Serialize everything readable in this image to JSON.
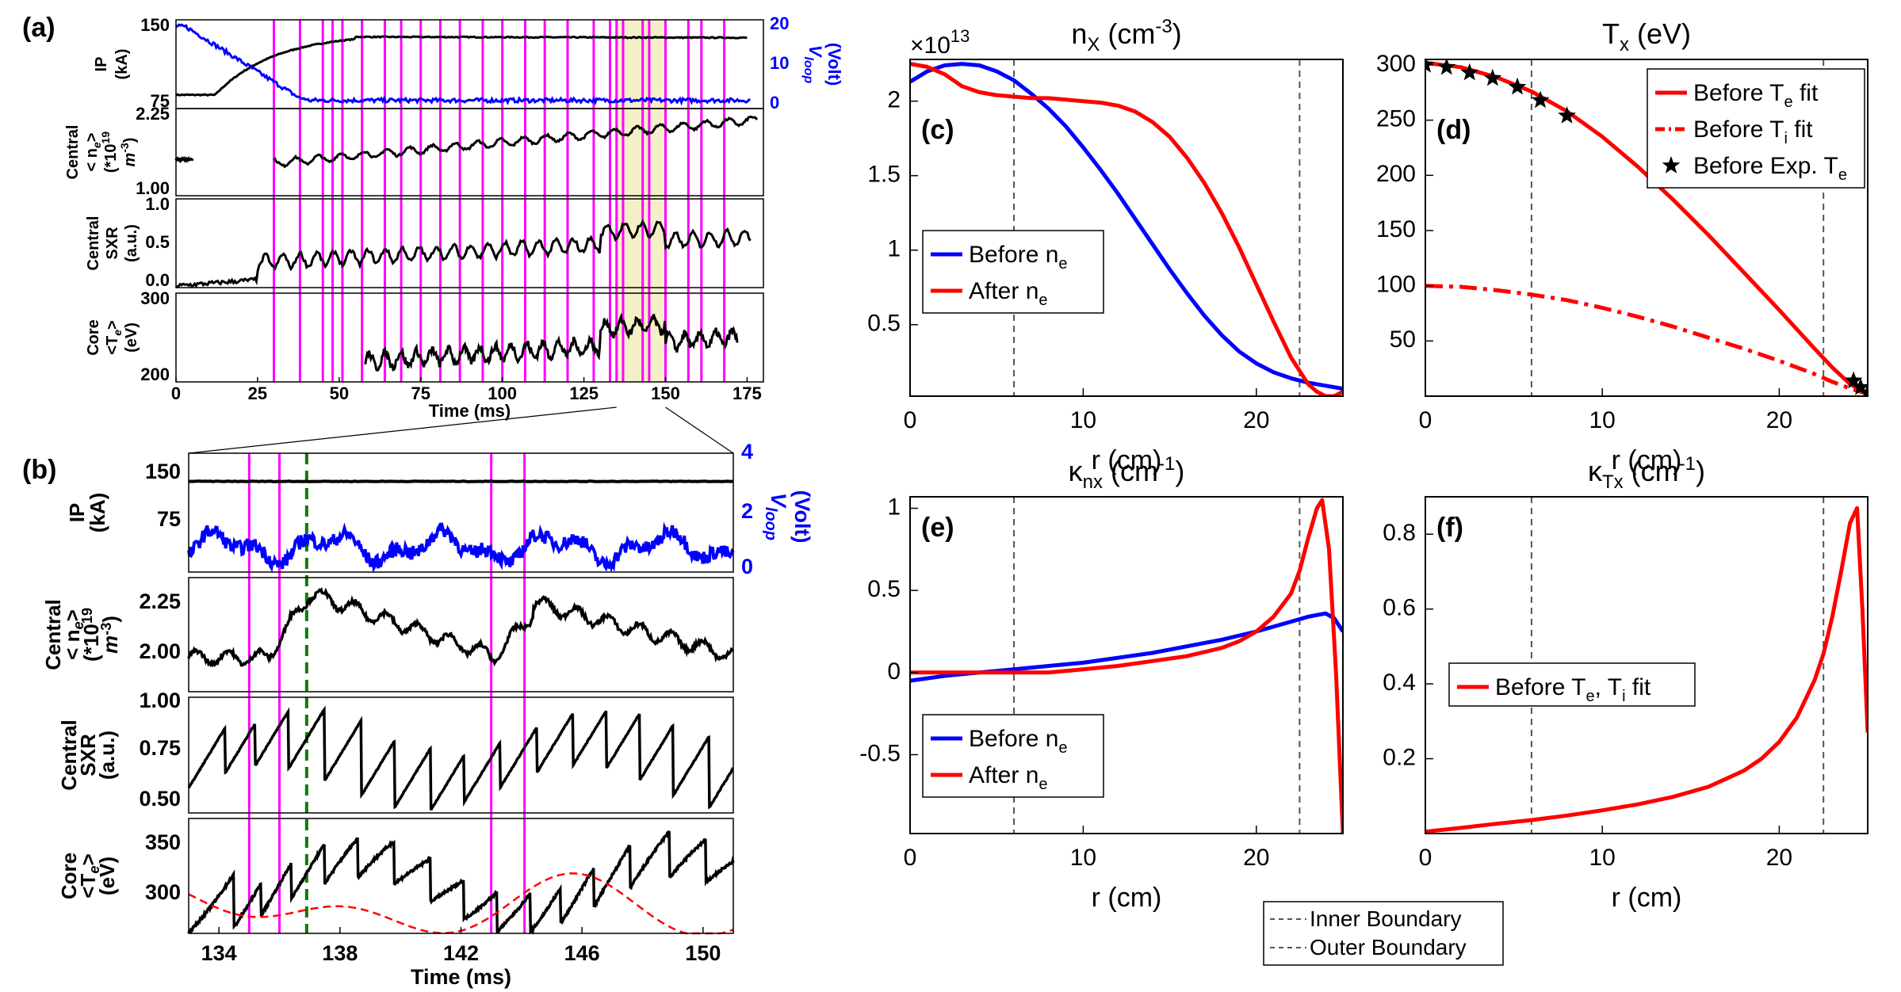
{
  "colors": {
    "black": "#000000",
    "blue": "#0000ff",
    "red": "#ff0000",
    "magenta": "#ff00ff",
    "green": "#008000",
    "highlight": "#f3f0c8",
    "grey": "#555555"
  },
  "panel_a": {
    "label": "(a)",
    "xlabel": "Time (ms)",
    "xticks": [
      "0",
      "25",
      "50",
      "75",
      "100",
      "125",
      "150",
      "175"
    ],
    "xlim": [
      0,
      180
    ],
    "highlight": [
      135,
      150
    ],
    "sawtooth_times": [
      30,
      38,
      45,
      48,
      51,
      57,
      64,
      69,
      75,
      81,
      87,
      94,
      100,
      107,
      113,
      120,
      128,
      133,
      135,
      137,
      143,
      145,
      150,
      157,
      161,
      168
    ],
    "subplots": [
      {
        "ylabel": [
          "IP",
          "(kA)"
        ],
        "yticks": [
          "150",
          "75"
        ],
        "y2label": [
          "V",
          "loop",
          "(Volt)"
        ],
        "y2ticks": [
          "20",
          "10",
          "0"
        ]
      },
      {
        "ylabel": [
          "Central",
          "< n",
          "e",
          ">",
          "(*10",
          "19",
          "m",
          "-3",
          ")"
        ],
        "yticks": [
          "2.25",
          "1.00"
        ]
      },
      {
        "ylabel": [
          "Central",
          "SXR",
          "(a.u.)"
        ],
        "yticks": [
          "1.0",
          "0.5",
          "0.0"
        ]
      },
      {
        "ylabel": [
          "Core",
          "<T",
          "e",
          ">",
          "(eV)"
        ],
        "yticks": [
          "300",
          "200"
        ]
      }
    ]
  },
  "panel_b": {
    "label": "(b)",
    "xlabel": "Time (ms)",
    "xticks": [
      "134",
      "138",
      "142",
      "146",
      "150"
    ],
    "xlim": [
      133,
      151
    ],
    "sawtooth_times": [
      135.0,
      136.0,
      143.0,
      144.1
    ],
    "green_time": 136.9,
    "subplots": [
      {
        "ylabel": [
          "IP",
          "(kA)"
        ],
        "yticks": [
          "150",
          "75"
        ],
        "y2label": [
          "V",
          "loop",
          "(Volt)"
        ],
        "y2ticks": [
          "4",
          "2",
          "0"
        ]
      },
      {
        "ylabel": [
          "Central",
          "< n",
          "e",
          ">",
          "(*10",
          "19",
          "m",
          "-3",
          ")"
        ],
        "yticks": [
          "2.25",
          "2.00"
        ]
      },
      {
        "ylabel": [
          "Central",
          "SXR",
          "(a.u.)"
        ],
        "yticks": [
          "1.00",
          "0.75",
          "0.50"
        ]
      },
      {
        "ylabel": [
          "Core",
          "<T",
          "e",
          ">",
          "(eV)"
        ],
        "yticks": [
          "350",
          "300"
        ]
      }
    ]
  },
  "profiles": {
    "xlabel": "r (cm)",
    "xticks": [
      "0",
      "10",
      "20"
    ],
    "inner_boundary": 6,
    "outer_boundary": 22.5,
    "boundary_legend": [
      "Inner Boundary",
      "Outer Boundary"
    ]
  },
  "chart_data": [
    {
      "id": "c",
      "type": "line",
      "label": "(c)",
      "title": "n",
      "title_sub": "X",
      "title_unit": " (cm",
      "title_sup": "-3",
      "exponent": "×10",
      "exponent_sup": "13",
      "xlim": [
        0,
        25
      ],
      "ylim": [
        0.02,
        2.28
      ],
      "yticks": [
        "2",
        "1.5",
        "1",
        "0.5"
      ],
      "legend": [
        {
          "name": "Before  n",
          "sub": "e",
          "color": "#0000ff"
        },
        {
          "name": "After  n",
          "sub": "e",
          "color": "#ff0000"
        }
      ],
      "series": [
        {
          "name": "Before n_e",
          "color": "#0000ff",
          "x": [
            0,
            1,
            2,
            3,
            4,
            5,
            6,
            7,
            8,
            9,
            10,
            11,
            12,
            13,
            14,
            15,
            16,
            17,
            18,
            19,
            20,
            21,
            22,
            23,
            24,
            25
          ],
          "y": [
            2.13,
            2.2,
            2.24,
            2.25,
            2.24,
            2.2,
            2.14,
            2.05,
            1.95,
            1.83,
            1.69,
            1.54,
            1.38,
            1.21,
            1.04,
            0.87,
            0.71,
            0.56,
            0.43,
            0.32,
            0.24,
            0.18,
            0.14,
            0.11,
            0.09,
            0.07
          ]
        },
        {
          "name": "After n_e",
          "color": "#ff0000",
          "x": [
            0,
            1,
            2,
            3,
            4,
            5,
            6,
            7,
            8,
            9,
            10,
            11,
            12,
            13,
            14,
            15,
            16,
            17,
            18,
            19,
            20,
            21,
            22,
            23,
            23.5,
            24,
            24.5,
            25
          ],
          "y": [
            2.25,
            2.23,
            2.18,
            2.1,
            2.06,
            2.04,
            2.03,
            2.02,
            2.02,
            2.01,
            2.0,
            1.99,
            1.97,
            1.93,
            1.86,
            1.76,
            1.62,
            1.45,
            1.25,
            1.02,
            0.77,
            0.52,
            0.28,
            0.1,
            0.05,
            0.02,
            0.02,
            0.05
          ]
        }
      ]
    },
    {
      "id": "d",
      "type": "line",
      "label": "(d)",
      "title": "T",
      "title_sub": "x",
      "title_unit": " (eV)",
      "xlim": [
        0,
        25
      ],
      "ylim": [
        0,
        305
      ],
      "yticks": [
        "300",
        "250",
        "200",
        "150",
        "100",
        "50"
      ],
      "legend": [
        {
          "name": "Before T",
          "sub": "e",
          "tail": " fit",
          "color": "#ff0000",
          "style": "solid"
        },
        {
          "name": "Before T",
          "sub": "i",
          "tail": " fit",
          "color": "#ff0000",
          "style": "dashdot"
        },
        {
          "name": "Before Exp. T",
          "sub": "e",
          "color": "#000000",
          "style": "star"
        }
      ],
      "series": [
        {
          "name": "Before Te fit",
          "color": "#ff0000",
          "style": "solid",
          "x": [
            0,
            2,
            4,
            6,
            8,
            10,
            12,
            14,
            16,
            18,
            20,
            22,
            23,
            24,
            25
          ],
          "y": [
            302,
            298,
            289,
            276,
            258,
            235,
            208,
            178,
            146,
            112,
            78,
            43,
            26,
            11,
            2
          ]
        },
        {
          "name": "Before Ti fit",
          "color": "#ff0000",
          "style": "dashdot",
          "x": [
            0,
            2,
            4,
            6,
            8,
            10,
            12,
            14,
            16,
            18,
            20,
            22,
            23,
            24,
            25
          ],
          "y": [
            100,
            99,
            96,
            92,
            87,
            80,
            72,
            63,
            53,
            43,
            32,
            20,
            13,
            7,
            2
          ]
        },
        {
          "name": "Before Exp. Te",
          "color": "#000000",
          "style": "star",
          "x": [
            0,
            1.2,
            2.5,
            3.8,
            5.2,
            6.5,
            8,
            24.2,
            24.6,
            25
          ],
          "y": [
            300,
            298,
            293,
            288,
            280,
            268,
            254,
            14,
            8,
            3
          ]
        }
      ]
    },
    {
      "id": "e",
      "type": "line",
      "label": "(e)",
      "title": "κ",
      "title_sub": "nx",
      "title_unit": " (cm",
      "title_sup": "-1",
      "xlim": [
        0,
        25
      ],
      "ylim": [
        -0.98,
        1.07
      ],
      "yticks": [
        "1",
        "0.5",
        "0",
        "-0.5"
      ],
      "legend": [
        {
          "name": "Before  n",
          "sub": "e",
          "color": "#0000ff"
        },
        {
          "name": "After  n",
          "sub": "e",
          "color": "#ff0000"
        }
      ],
      "series": [
        {
          "name": "Before n_e",
          "color": "#0000ff",
          "x": [
            0,
            2,
            4,
            6,
            8,
            10,
            12,
            14,
            16,
            18,
            20,
            22,
            23,
            24,
            24.5,
            25
          ],
          "y": [
            -0.05,
            -0.02,
            0.0,
            0.02,
            0.04,
            0.06,
            0.09,
            0.12,
            0.16,
            0.2,
            0.25,
            0.31,
            0.34,
            0.36,
            0.33,
            0.25
          ]
        },
        {
          "name": "After n_e",
          "color": "#ff0000",
          "x": [
            0,
            2,
            4,
            6,
            8,
            10,
            12,
            14,
            16,
            18,
            19,
            20,
            21,
            22,
            22.5,
            23,
            23.5,
            23.8,
            24.2,
            24.6,
            25
          ],
          "y": [
            0.0,
            0.0,
            0.0,
            0.0,
            0.0,
            0.02,
            0.04,
            0.07,
            0.1,
            0.15,
            0.19,
            0.25,
            0.34,
            0.48,
            0.62,
            0.82,
            1.0,
            1.05,
            0.75,
            0.0,
            -0.98
          ]
        }
      ]
    },
    {
      "id": "f",
      "type": "line",
      "label": "(f)",
      "title": "κ",
      "title_sub": "Tx",
      "title_unit": " (cm",
      "title_sup": "-1",
      "xlim": [
        0,
        25
      ],
      "ylim": [
        0,
        0.9
      ],
      "yticks": [
        "0.8",
        "0.6",
        "0.4",
        "0.2"
      ],
      "legend": [
        {
          "name": "Before T",
          "sub": "e",
          "mid": ", T",
          "sub2": "i",
          "tail": " fit",
          "color": "#ff0000"
        }
      ],
      "series": [
        {
          "name": "Before Te, Ti fit",
          "color": "#ff0000",
          "x": [
            0,
            2,
            4,
            6,
            8,
            10,
            12,
            14,
            16,
            18,
            19,
            20,
            21,
            22,
            22.5,
            23,
            23.5,
            24,
            24.4,
            24.7,
            25
          ],
          "y": [
            0.005,
            0.015,
            0.026,
            0.036,
            0.048,
            0.062,
            0.078,
            0.098,
            0.125,
            0.168,
            0.2,
            0.245,
            0.31,
            0.41,
            0.48,
            0.58,
            0.7,
            0.83,
            0.87,
            0.6,
            0.27
          ]
        }
      ]
    }
  ]
}
